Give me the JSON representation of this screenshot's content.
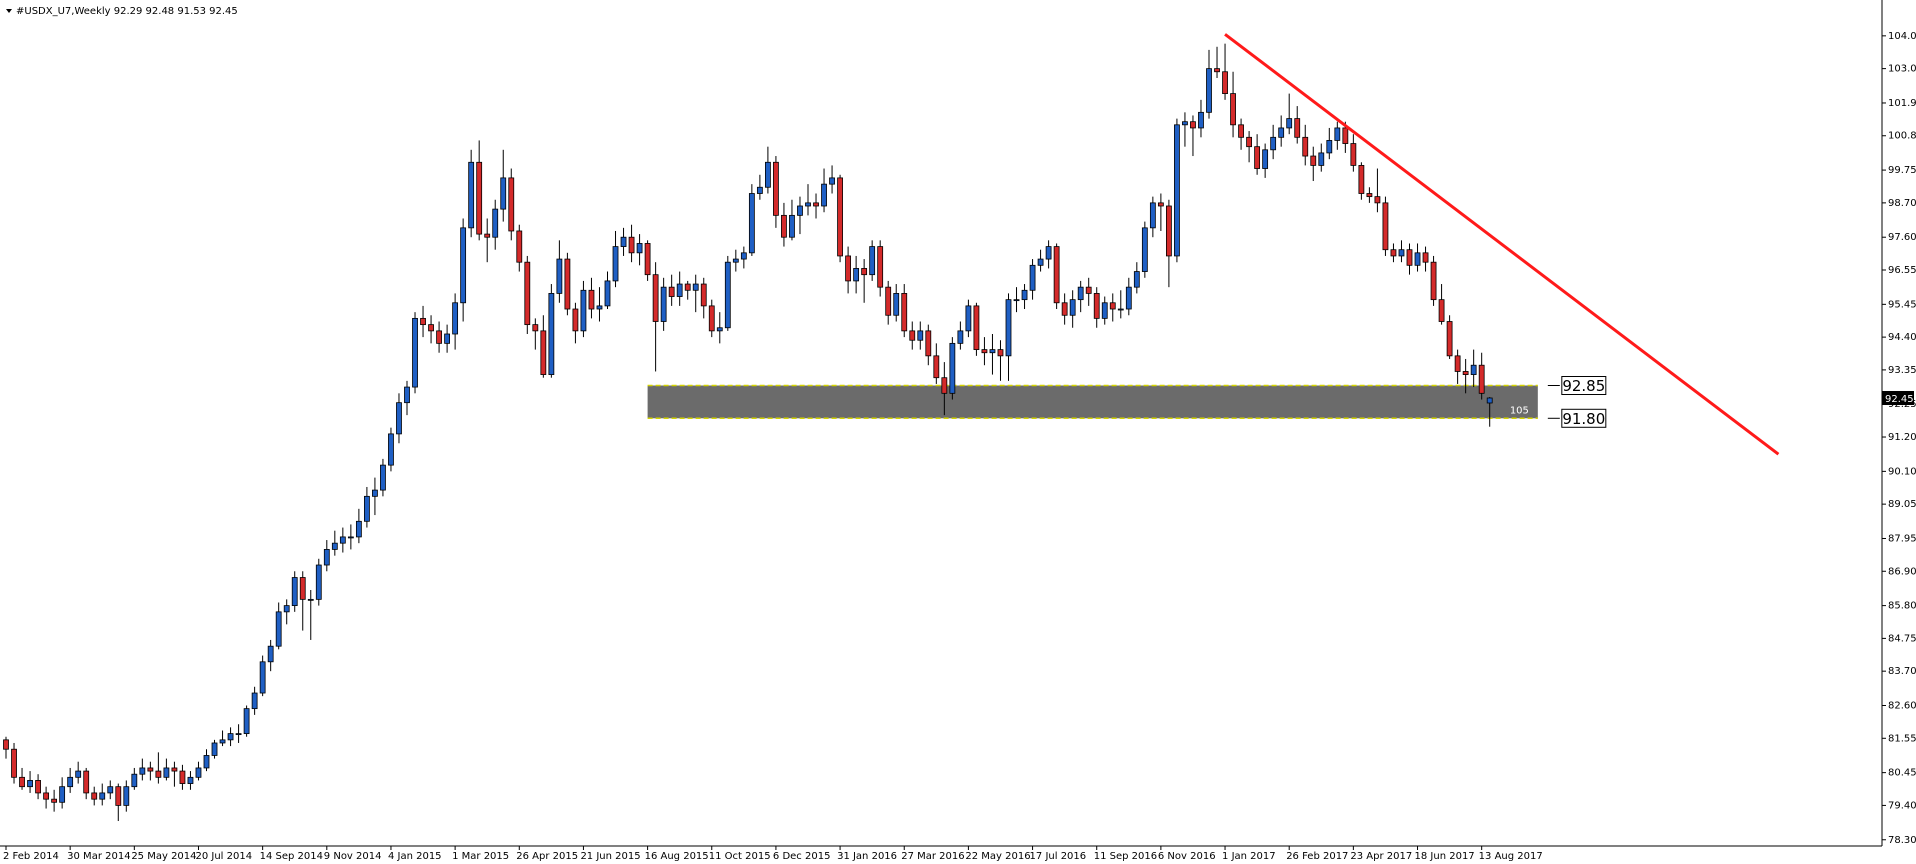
{
  "chart_data": {
    "type": "candlestick",
    "title": "#USDX_U7,Weekly  92.29 92.48 91.53 92.45",
    "categories": [
      "2 Feb 2014",
      null,
      null,
      null,
      null,
      null,
      null,
      null,
      "30 Mar 2014",
      null,
      null,
      null,
      null,
      null,
      null,
      null,
      "25 May 2014",
      null,
      null,
      null,
      null,
      null,
      null,
      null,
      "20 Jul 2014",
      null,
      null,
      null,
      null,
      null,
      null,
      null,
      "14 Sep 2014",
      null,
      null,
      null,
      null,
      null,
      null,
      null,
      "9 Nov 2014",
      null,
      null,
      null,
      null,
      null,
      null,
      null,
      "4 Jan 2015",
      null,
      null,
      null,
      null,
      null,
      null,
      null,
      "1 Mar 2015",
      null,
      null,
      null,
      null,
      null,
      null,
      null,
      "26 Apr 2015",
      null,
      null,
      null,
      null,
      null,
      null,
      null,
      "21 Jun 2015",
      null,
      null,
      null,
      null,
      null,
      null,
      null,
      "16 Aug 2015",
      null,
      null,
      null,
      null,
      null,
      null,
      null,
      "11 Oct 2015",
      null,
      null,
      null,
      null,
      null,
      null,
      null,
      "6 Dec 2015",
      null,
      null,
      null,
      null,
      null,
      null,
      null,
      "31 Jan 2016",
      null,
      null,
      null,
      null,
      null,
      null,
      null,
      "27 Mar 2016",
      null,
      null,
      null,
      null,
      null,
      null,
      null,
      "22 May 2016",
      null,
      null,
      null,
      null,
      null,
      null,
      null,
      "17 Jul 2016",
      null,
      null,
      null,
      null,
      null,
      null,
      null,
      "11 Sep 2016",
      null,
      null,
      null,
      null,
      null,
      null,
      null,
      "6 Nov 2016",
      null,
      null,
      null,
      null,
      null,
      null,
      null,
      "1 Jan 2017",
      null,
      null,
      null,
      null,
      null,
      null,
      null,
      "26 Feb 2017",
      null,
      null,
      null,
      null,
      null,
      null,
      null,
      "23 Apr 2017",
      null,
      null,
      null,
      null,
      null,
      null,
      null,
      "18 Jun 2017",
      null,
      null,
      null,
      null,
      null,
      null,
      null,
      "13 Aug 2017",
      null
    ],
    "ohlc": [
      [
        81.5,
        81.6,
        80.9,
        81.2
      ],
      [
        81.2,
        81.4,
        80.1,
        80.3
      ],
      [
        80.3,
        80.6,
        79.9,
        80.0
      ],
      [
        80.0,
        80.5,
        79.8,
        80.2
      ],
      [
        80.2,
        80.4,
        79.6,
        79.8
      ],
      [
        79.8,
        80.0,
        79.3,
        79.6
      ],
      [
        79.6,
        79.9,
        79.2,
        79.5
      ],
      [
        79.5,
        80.3,
        79.3,
        80.0
      ],
      [
        80.0,
        80.6,
        79.8,
        80.3
      ],
      [
        80.3,
        80.8,
        80.1,
        80.5
      ],
      [
        80.5,
        80.6,
        79.6,
        79.8
      ],
      [
        79.8,
        80.0,
        79.4,
        79.6
      ],
      [
        79.6,
        80.1,
        79.4,
        79.8
      ],
      [
        79.8,
        80.2,
        79.6,
        80.0
      ],
      [
        80.0,
        80.1,
        78.9,
        79.4
      ],
      [
        79.4,
        80.2,
        79.2,
        80.0
      ],
      [
        80.0,
        80.6,
        79.9,
        80.4
      ],
      [
        80.4,
        80.9,
        80.2,
        80.6
      ],
      [
        80.6,
        80.8,
        80.2,
        80.5
      ],
      [
        80.5,
        81.1,
        80.1,
        80.3
      ],
      [
        80.3,
        80.9,
        80.2,
        80.6
      ],
      [
        80.6,
        80.8,
        80.0,
        80.5
      ],
      [
        80.5,
        80.7,
        79.9,
        80.1
      ],
      [
        80.1,
        80.5,
        79.9,
        80.3
      ],
      [
        80.3,
        80.8,
        80.2,
        80.6
      ],
      [
        80.6,
        81.2,
        80.5,
        81.0
      ],
      [
        81.0,
        81.5,
        80.9,
        81.4
      ],
      [
        81.4,
        81.8,
        81.3,
        81.5
      ],
      [
        81.5,
        81.9,
        81.3,
        81.7
      ],
      [
        81.7,
        82.0,
        81.4,
        81.7
      ],
      [
        81.7,
        82.6,
        81.6,
        82.5
      ],
      [
        82.5,
        83.2,
        82.3,
        83.0
      ],
      [
        83.0,
        84.2,
        82.9,
        84.0
      ],
      [
        84.0,
        84.7,
        83.7,
        84.5
      ],
      [
        84.5,
        85.9,
        84.4,
        85.6
      ],
      [
        85.6,
        86.0,
        85.2,
        85.8
      ],
      [
        85.8,
        86.9,
        85.6,
        86.7
      ],
      [
        86.7,
        86.9,
        85.0,
        86.0
      ],
      [
        86.0,
        86.3,
        84.7,
        86.0
      ],
      [
        86.0,
        87.3,
        85.8,
        87.1
      ],
      [
        87.1,
        87.9,
        86.9,
        87.6
      ],
      [
        87.6,
        88.2,
        87.4,
        87.8
      ],
      [
        87.8,
        88.3,
        87.5,
        88.0
      ],
      [
        88.0,
        88.4,
        87.6,
        88.0
      ],
      [
        88.0,
        88.9,
        87.8,
        88.5
      ],
      [
        88.5,
        89.6,
        88.3,
        89.3
      ],
      [
        89.3,
        89.9,
        88.7,
        89.5
      ],
      [
        89.5,
        90.5,
        89.3,
        90.3
      ],
      [
        90.3,
        91.5,
        90.1,
        91.3
      ],
      [
        91.3,
        92.6,
        91.0,
        92.3
      ],
      [
        92.3,
        93.0,
        91.9,
        92.8
      ],
      [
        92.8,
        95.2,
        92.6,
        95.0
      ],
      [
        95.0,
        95.4,
        94.4,
        94.8
      ],
      [
        94.8,
        95.1,
        94.2,
        94.6
      ],
      [
        94.6,
        94.9,
        93.9,
        94.2
      ],
      [
        94.2,
        94.8,
        93.9,
        94.5
      ],
      [
        94.5,
        95.8,
        94.0,
        95.5
      ],
      [
        95.5,
        98.2,
        94.9,
        97.9
      ],
      [
        97.9,
        100.4,
        97.6,
        100.0
      ],
      [
        100.0,
        100.7,
        97.5,
        97.7
      ],
      [
        97.7,
        98.2,
        96.8,
        97.6
      ],
      [
        97.6,
        98.8,
        97.2,
        98.5
      ],
      [
        98.5,
        100.4,
        98.1,
        99.5
      ],
      [
        99.5,
        99.8,
        97.5,
        97.8
      ],
      [
        97.8,
        98.0,
        96.5,
        96.8
      ],
      [
        96.8,
        97.0,
        94.5,
        94.8
      ],
      [
        94.8,
        95.0,
        94.0,
        94.6
      ],
      [
        94.6,
        95.1,
        93.1,
        93.2
      ],
      [
        93.2,
        96.1,
        93.1,
        95.8
      ],
      [
        95.8,
        97.5,
        95.5,
        96.9
      ],
      [
        96.9,
        97.1,
        95.1,
        95.3
      ],
      [
        95.3,
        95.5,
        94.2,
        94.6
      ],
      [
        94.6,
        96.2,
        94.4,
        95.9
      ],
      [
        95.9,
        96.3,
        95.0,
        95.3
      ],
      [
        95.3,
        96.0,
        94.9,
        95.4
      ],
      [
        95.4,
        96.5,
        95.3,
        96.2
      ],
      [
        96.2,
        97.8,
        96.0,
        97.3
      ],
      [
        97.3,
        97.9,
        97.0,
        97.6
      ],
      [
        97.6,
        98.0,
        96.8,
        97.1
      ],
      [
        97.1,
        97.7,
        96.7,
        97.4
      ],
      [
        97.4,
        97.5,
        96.2,
        96.4
      ],
      [
        96.4,
        96.8,
        93.3,
        94.9
      ],
      [
        94.9,
        96.3,
        94.6,
        96.0
      ],
      [
        96.0,
        96.4,
        95.4,
        95.7
      ],
      [
        95.7,
        96.5,
        95.4,
        96.1
      ],
      [
        96.1,
        96.2,
        95.6,
        95.9
      ],
      [
        95.9,
        96.4,
        95.2,
        96.1
      ],
      [
        96.1,
        96.3,
        95.0,
        95.4
      ],
      [
        95.4,
        95.6,
        94.4,
        94.6
      ],
      [
        94.6,
        95.2,
        94.2,
        94.7
      ],
      [
        94.7,
        97.0,
        94.6,
        96.8
      ],
      [
        96.8,
        97.2,
        96.5,
        96.9
      ],
      [
        96.9,
        97.3,
        96.6,
        97.1
      ],
      [
        97.1,
        99.3,
        97.0,
        99.0
      ],
      [
        99.0,
        99.6,
        98.8,
        99.2
      ],
      [
        99.2,
        100.5,
        99.0,
        100.0
      ],
      [
        100.0,
        100.2,
        97.9,
        98.3
      ],
      [
        98.3,
        98.7,
        97.3,
        97.6
      ],
      [
        97.6,
        98.8,
        97.5,
        98.3
      ],
      [
        98.3,
        98.9,
        97.7,
        98.6
      ],
      [
        98.6,
        99.3,
        98.3,
        98.7
      ],
      [
        98.7,
        99.0,
        98.2,
        98.6
      ],
      [
        98.6,
        99.8,
        98.4,
        99.3
      ],
      [
        99.3,
        99.9,
        99.0,
        99.5
      ],
      [
        99.5,
        99.6,
        96.8,
        97.0
      ],
      [
        97.0,
        97.3,
        95.8,
        96.2
      ],
      [
        96.2,
        97.0,
        95.8,
        96.6
      ],
      [
        96.6,
        96.9,
        95.5,
        96.4
      ],
      [
        96.4,
        97.5,
        96.2,
        97.3
      ],
      [
        97.3,
        97.5,
        95.7,
        96.0
      ],
      [
        96.0,
        96.2,
        94.8,
        95.1
      ],
      [
        95.1,
        96.1,
        94.9,
        95.8
      ],
      [
        95.8,
        96.1,
        94.4,
        94.6
      ],
      [
        94.6,
        94.9,
        94.0,
        94.3
      ],
      [
        94.3,
        94.9,
        94.0,
        94.6
      ],
      [
        94.6,
        94.8,
        93.5,
        93.8
      ],
      [
        93.8,
        94.2,
        92.9,
        93.1
      ],
      [
        93.1,
        93.6,
        91.9,
        92.6
      ],
      [
        92.6,
        94.4,
        92.4,
        94.2
      ],
      [
        94.2,
        94.9,
        94.0,
        94.6
      ],
      [
        94.6,
        95.6,
        94.4,
        95.4
      ],
      [
        95.4,
        95.5,
        93.8,
        94.0
      ],
      [
        94.0,
        94.4,
        93.5,
        93.9
      ],
      [
        93.9,
        94.5,
        93.2,
        94.0
      ],
      [
        94.0,
        94.3,
        93.0,
        93.8
      ],
      [
        93.8,
        95.8,
        93.0,
        95.6
      ],
      [
        95.6,
        96.0,
        95.2,
        95.6
      ],
      [
        95.6,
        96.1,
        95.3,
        95.9
      ],
      [
        95.9,
        96.9,
        95.6,
        96.7
      ],
      [
        96.7,
        97.2,
        96.5,
        96.9
      ],
      [
        96.9,
        97.5,
        96.6,
        97.3
      ],
      [
        97.3,
        97.4,
        95.3,
        95.5
      ],
      [
        95.5,
        95.8,
        94.8,
        95.1
      ],
      [
        95.1,
        95.9,
        94.7,
        95.6
      ],
      [
        95.6,
        96.2,
        95.2,
        96.0
      ],
      [
        96.0,
        96.3,
        95.4,
        95.8
      ],
      [
        95.8,
        96.0,
        94.7,
        95.0
      ],
      [
        95.0,
        95.7,
        94.8,
        95.5
      ],
      [
        95.5,
        95.8,
        94.9,
        95.3
      ],
      [
        95.3,
        95.9,
        95.0,
        95.3
      ],
      [
        95.3,
        96.3,
        95.1,
        96.0
      ],
      [
        96.0,
        96.8,
        95.8,
        96.5
      ],
      [
        96.5,
        98.1,
        96.3,
        97.9
      ],
      [
        97.9,
        98.9,
        97.6,
        98.7
      ],
      [
        98.7,
        99.0,
        97.8,
        98.6
      ],
      [
        98.6,
        98.8,
        96.0,
        97.0
      ],
      [
        97.0,
        101.4,
        96.8,
        101.2
      ],
      [
        101.2,
        101.6,
        100.5,
        101.3
      ],
      [
        101.3,
        101.5,
        100.2,
        101.1
      ],
      [
        101.1,
        102.0,
        100.8,
        101.6
      ],
      [
        101.6,
        103.6,
        101.4,
        103.0
      ],
      [
        103.0,
        103.7,
        102.7,
        102.9
      ],
      [
        102.9,
        103.8,
        102.0,
        102.2
      ],
      [
        102.2,
        102.9,
        100.8,
        101.2
      ],
      [
        101.2,
        101.4,
        100.4,
        100.8
      ],
      [
        100.8,
        101.0,
        100.0,
        100.5
      ],
      [
        100.5,
        100.9,
        99.6,
        99.8
      ],
      [
        99.8,
        100.6,
        99.5,
        100.4
      ],
      [
        100.4,
        101.2,
        100.1,
        100.8
      ],
      [
        100.8,
        101.5,
        100.5,
        101.1
      ],
      [
        101.1,
        102.2,
        100.9,
        101.4
      ],
      [
        101.4,
        101.8,
        100.6,
        100.8
      ],
      [
        100.8,
        101.2,
        99.9,
        100.2
      ],
      [
        100.2,
        100.5,
        99.4,
        99.9
      ],
      [
        99.9,
        100.6,
        99.7,
        100.3
      ],
      [
        100.3,
        101.1,
        100.1,
        100.7
      ],
      [
        100.7,
        101.3,
        100.4,
        101.1
      ],
      [
        101.1,
        101.3,
        100.3,
        100.6
      ],
      [
        100.6,
        100.9,
        99.7,
        99.9
      ],
      [
        99.9,
        100.0,
        98.8,
        99.0
      ],
      [
        99.0,
        99.2,
        98.7,
        98.9
      ],
      [
        98.9,
        99.8,
        98.4,
        98.7
      ],
      [
        98.7,
        98.9,
        97.0,
        97.2
      ],
      [
        97.2,
        97.4,
        96.8,
        97.0
      ],
      [
        97.0,
        97.5,
        96.8,
        97.2
      ],
      [
        97.2,
        97.4,
        96.4,
        96.7
      ],
      [
        96.7,
        97.4,
        96.5,
        97.1
      ],
      [
        97.1,
        97.3,
        96.5,
        96.8
      ],
      [
        96.8,
        97.0,
        95.4,
        95.6
      ],
      [
        95.6,
        96.1,
        94.8,
        94.9
      ],
      [
        94.9,
        95.1,
        93.7,
        93.8
      ],
      [
        93.8,
        94.0,
        92.9,
        93.3
      ],
      [
        93.3,
        93.7,
        92.6,
        93.2
      ],
      [
        93.2,
        94.0,
        92.8,
        93.5
      ],
      [
        93.5,
        93.9,
        92.4,
        92.6
      ],
      [
        92.29,
        92.48,
        91.53,
        92.45
      ]
    ],
    "up_color": "#1f5fc4",
    "down_color": "#d42a2a",
    "ylim": [
      78.1,
      105.07
    ],
    "yticks": [
      104.05,
      {
        "value": 103,
        "label": "103.00"
      },
      {
        "value": 101.9,
        "label": "101.90"
      },
      100.85,
      99.75,
      {
        "value": 98.7,
        "label": "98.70"
      },
      {
        "value": 97.6,
        "label": "97.60"
      },
      96.55,
      95.45,
      {
        "value": 94.4,
        "label": "94.40"
      },
      93.35,
      92.25,
      {
        "value": 91.2,
        "label": "91.20"
      },
      {
        "value": 90.1,
        "label": "90.10"
      },
      89.05,
      87.95,
      {
        "value": 86.9,
        "label": "86.90"
      },
      {
        "value": 85.8,
        "label": "85.80"
      },
      84.75,
      {
        "value": 83.7,
        "label": "83.70"
      },
      {
        "value": 82.6,
        "label": "82.60"
      },
      81.55,
      80.45,
      {
        "value": 79.4,
        "label": "79.40"
      },
      {
        "value": 78.3,
        "label": "78.30"
      }
    ],
    "last_price": 92.45,
    "zone": {
      "top": 92.85,
      "bottom": {
        "value": 91.8,
        "label": "91.80"
      },
      "start": 80,
      "end": 191,
      "label": "105",
      "color": "#6b6b6b",
      "border_color": "#d4d400"
    },
    "trendline": {
      "start": [
        152,
        104.1
      ],
      "end": [
        221,
        90.65
      ],
      "color": "#ff1a1a"
    }
  }
}
